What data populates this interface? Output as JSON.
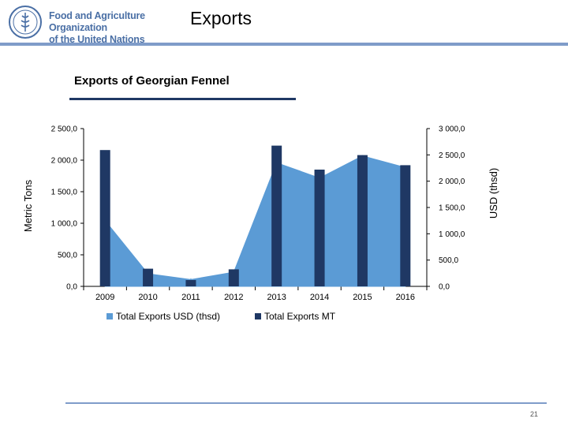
{
  "header": {
    "org_name": "Food and Agriculture Organization\nof the United Nations",
    "logo_icon": "fao-emblem-icon",
    "title": "Exports",
    "rule_color": "#7f9cc9"
  },
  "subtitle": "Exports of Georgian Fennel",
  "footer": {
    "page_number": "21"
  },
  "chart_data": {
    "type": "bar+area",
    "title": "",
    "categories": [
      "2009",
      "2010",
      "2011",
      "2012",
      "2013",
      "2014",
      "2015",
      "2016"
    ],
    "y_left_label": "Metric Tons",
    "y_right_label": "USD (thsd)",
    "y_left_range": [
      0,
      2500
    ],
    "y_right_range": [
      0,
      3000
    ],
    "y_left_ticks": [
      "0,0",
      "500,0",
      "1 000,0",
      "1 500,0",
      "2 000,0",
      "2 500,0"
    ],
    "y_right_ticks": [
      "0,0",
      "500,0",
      "1 000,0",
      "1 500,0",
      "2 000,0",
      "2 500,0",
      "3 000,0"
    ],
    "grid": false,
    "legend_position": "bottom",
    "series": [
      {
        "name": "Total Exports USD (thsd)",
        "type": "area",
        "axis": "right",
        "color": "#5b9bd5",
        "values": [
          1250,
          240,
          130,
          270,
          2350,
          2060,
          2480,
          2260
        ]
      },
      {
        "name": "Total Exports MT",
        "type": "bar",
        "axis": "left",
        "color": "#1f3864",
        "values": [
          2160,
          280,
          100,
          270,
          2230,
          1850,
          2080,
          1920
        ]
      }
    ]
  }
}
